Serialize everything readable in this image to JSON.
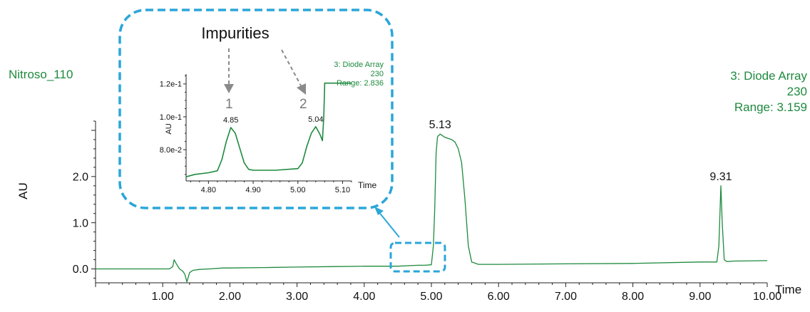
{
  "chart_data": [
    {
      "type": "line",
      "sample_name": "Nitroso_110",
      "channel_label": [
        "3: Diode Array",
        "230",
        "Range: 3.159"
      ],
      "xlabel": "Time",
      "ylabel": "AU",
      "xlim": [
        0.0,
        10.0
      ],
      "ylim": [
        -0.3,
        3.2
      ],
      "x_ticks": [
        "1.00",
        "2.00",
        "3.00",
        "4.00",
        "5.00",
        "6.00",
        "7.00",
        "8.00",
        "9.00",
        "10.00"
      ],
      "y_ticks": [
        "0.0",
        "1.0",
        "2.0"
      ],
      "series": [
        {
          "color": "#1e8a3e",
          "x": [
            0.0,
            1.1,
            1.15,
            1.17,
            1.2,
            1.25,
            1.3,
            1.33,
            1.36,
            1.4,
            1.45,
            1.55,
            1.7,
            1.9,
            2.0,
            2.5,
            3.0,
            3.5,
            4.0,
            4.5,
            4.8,
            4.85,
            4.9,
            5.0,
            5.03,
            5.05,
            5.07,
            5.09,
            5.1,
            5.12,
            5.13,
            5.2,
            5.3,
            5.35,
            5.4,
            5.45,
            5.5,
            5.55,
            5.6,
            5.7,
            6.0,
            7.0,
            8.0,
            9.0,
            9.25,
            9.28,
            9.31,
            9.33,
            9.36,
            9.4,
            9.5,
            10.0
          ],
          "y": [
            0.0,
            0.0,
            0.05,
            0.2,
            0.12,
            0.0,
            -0.05,
            -0.12,
            -0.28,
            -0.08,
            -0.03,
            -0.01,
            0.0,
            0.02,
            0.02,
            0.03,
            0.04,
            0.05,
            0.06,
            0.06,
            0.08,
            0.08,
            0.08,
            0.09,
            0.5,
            1.3,
            2.5,
            2.85,
            2.88,
            2.9,
            2.92,
            2.85,
            2.8,
            2.75,
            2.6,
            2.3,
            1.5,
            0.5,
            0.15,
            0.1,
            0.1,
            0.11,
            0.12,
            0.15,
            0.15,
            0.5,
            1.8,
            1.0,
            0.2,
            0.16,
            0.17,
            0.18
          ]
        }
      ],
      "peak_labels": [
        {
          "x": 5.13,
          "y": 2.92,
          "label": "5.13"
        },
        {
          "x": 9.31,
          "y": 1.8,
          "label": "9.31"
        }
      ]
    },
    {
      "type": "line",
      "title": "Impurities",
      "channel_label": [
        "3: Diode Array",
        "230",
        "Range: 2.836"
      ],
      "xlabel": "Time",
      "ylabel": "AU",
      "xlim": [
        4.75,
        5.12
      ],
      "ylim": [
        0.061,
        0.126
      ],
      "x_ticks": [
        "4.80",
        "4.90",
        "5.00",
        "5.10"
      ],
      "y_ticks": [
        "8.0e-2",
        "1.0e-1",
        "1.2e-1"
      ],
      "series": [
        {
          "color": "#1e8a3e",
          "x": [
            4.75,
            4.77,
            4.8,
            4.82,
            4.83,
            4.84,
            4.85,
            4.86,
            4.87,
            4.88,
            4.89,
            4.9,
            4.95,
            5.0,
            5.01,
            5.02,
            5.03,
            5.04,
            5.05,
            5.055,
            5.058,
            5.06,
            5.08,
            5.12
          ],
          "y": [
            0.0635,
            0.065,
            0.066,
            0.0672,
            0.074,
            0.085,
            0.0935,
            0.09,
            0.081,
            0.072,
            0.068,
            0.0675,
            0.0675,
            0.0685,
            0.072,
            0.082,
            0.09,
            0.094,
            0.089,
            0.0855,
            0.1,
            0.1205,
            0.1205,
            0.1205
          ]
        }
      ],
      "peak_labels": [
        {
          "x": 4.85,
          "y": 0.0935,
          "label": "4.85"
        },
        {
          "x": 5.04,
          "y": 0.094,
          "label": "5.04"
        }
      ],
      "impurity_markers": [
        "1",
        "2"
      ]
    }
  ]
}
